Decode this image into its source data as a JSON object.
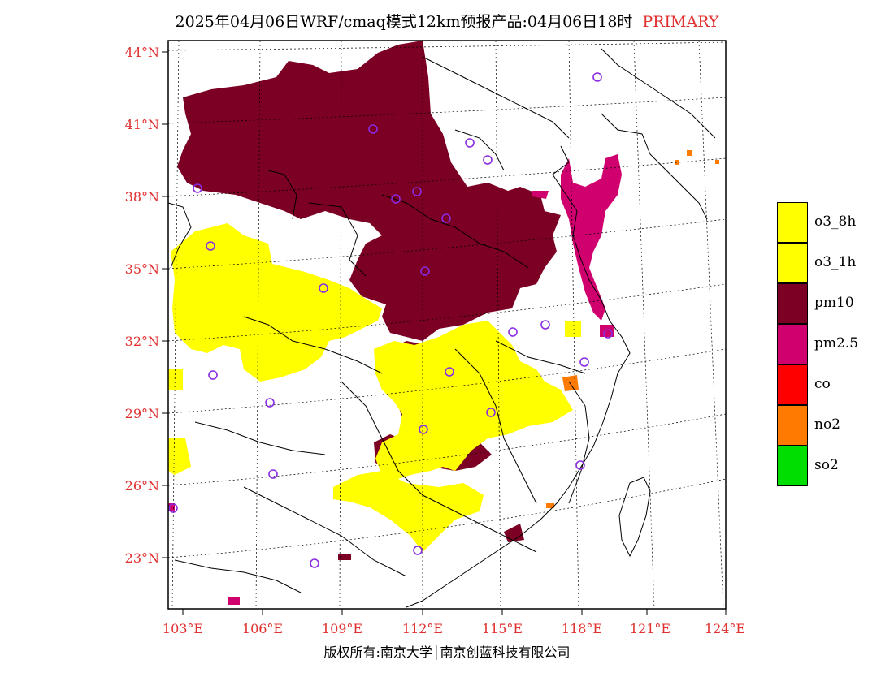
{
  "title": {
    "main": "2025年04月06日WRF/cmaq模式12km预报产品:04月06日18时",
    "tag": "PRIMARY"
  },
  "axes": {
    "lat_labels": [
      "44°N",
      "41°N",
      "38°N",
      "35°N",
      "32°N",
      "29°N",
      "26°N",
      "23°N"
    ],
    "lon_labels": [
      "103°E",
      "106°E",
      "109°E",
      "112°E",
      "115°E",
      "118°E",
      "121°E",
      "124°E"
    ]
  },
  "legend": [
    {
      "label": "o3_8h",
      "color": "#ffff00"
    },
    {
      "label": "o3_1h",
      "color": "#ffff00"
    },
    {
      "label": "pm10",
      "color": "#7b0024"
    },
    {
      "label": "pm2.5",
      "color": "#d0006e"
    },
    {
      "label": "co",
      "color": "#ff0000"
    },
    {
      "label": "no2",
      "color": "#ff7a00"
    },
    {
      "label": "so2",
      "color": "#00dd00"
    }
  ],
  "copyright": "版权所有:南京大学│南京创蓝科技有限公司"
}
